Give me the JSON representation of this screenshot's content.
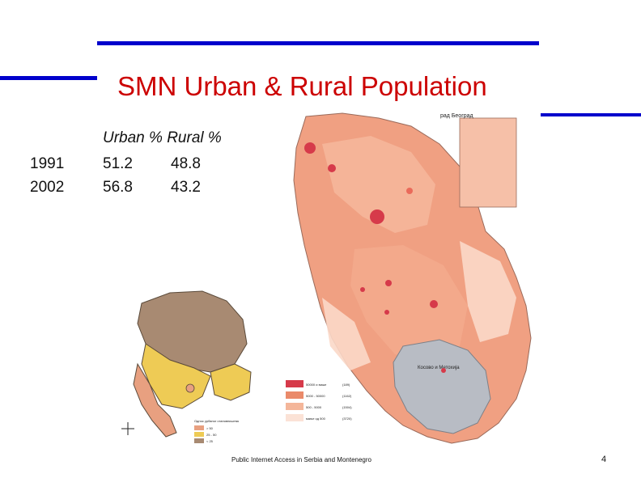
{
  "slide": {
    "title": "SMN Urban & Rural Population",
    "table": {
      "header": "Urban % Rural %",
      "rows": [
        {
          "year": "1991",
          "urban": "51.2",
          "rural": "48.8"
        },
        {
          "year": "2002",
          "urban": "56.8",
          "rural": "43.2"
        }
      ]
    },
    "footer": "Public Internet Access in Serbia and Montenegro",
    "page_number": "4"
  },
  "maps": {
    "serbia": {
      "inset_title": "рад Београд",
      "kosovo_label": "Косово и Метохија",
      "legend": [
        {
          "label": "50000 и више",
          "value": "(189)",
          "color": "#d63a4a"
        },
        {
          "label": "5000 - 50000",
          "value": "(1162)",
          "color": "#ea8a6a"
        },
        {
          "label": "500 - 5000",
          "value": "(1504)",
          "color": "#f4b69a"
        },
        {
          "label": "мање од 500",
          "value": "(3720)",
          "color": "#fbe2d6"
        }
      ]
    },
    "montenegro": {
      "legend_title": "Одноc урбаног становништва",
      "legend": [
        {
          "label": "> 50",
          "color": "#e8a080"
        },
        {
          "label": "25 - 50",
          "color": "#eecb55"
        },
        {
          "label": "< 25",
          "color": "#a88a72"
        }
      ]
    },
    "colors": {
      "dense": "#d63a4a",
      "medium": "#ea8a6a",
      "light": "#f4b69a",
      "pale": "#fbe2d6",
      "kosovo": "#b8bcc4",
      "mn_brown": "#a88a72",
      "mn_yellow": "#eecb55",
      "mn_peach": "#e8a080"
    }
  }
}
